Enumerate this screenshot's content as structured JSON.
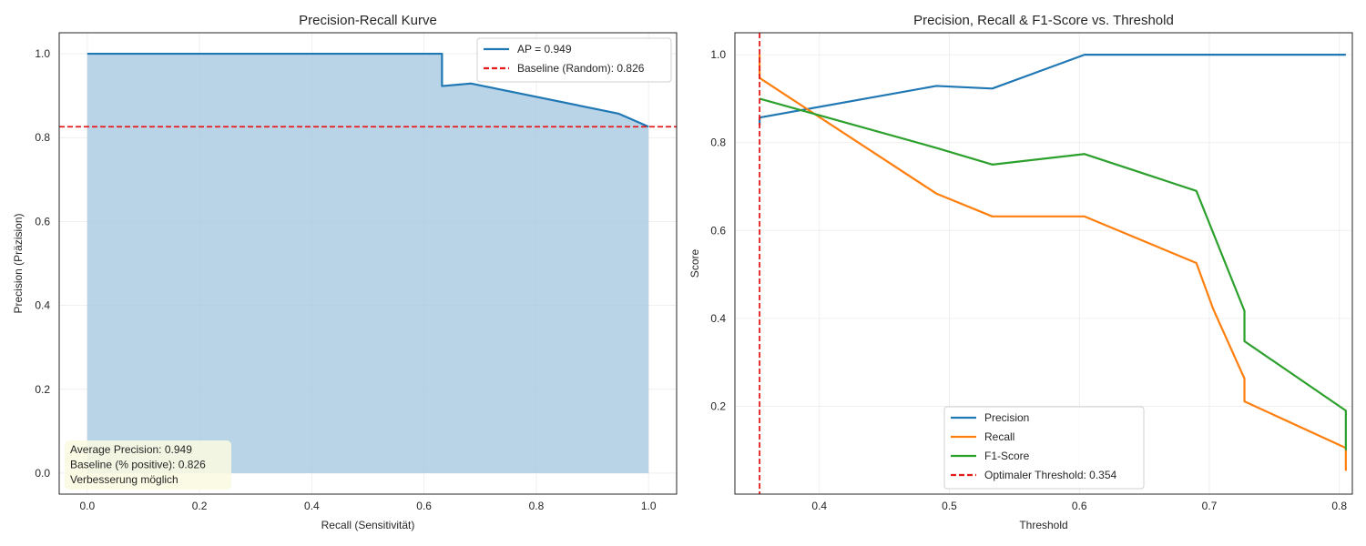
{
  "chart_data": [
    {
      "type": "area",
      "title": "Precision-Recall Kurve",
      "xlabel": "Recall (Sensitivität)",
      "ylabel": "Precision (Präzision)",
      "xlim": [
        -0.05,
        1.05
      ],
      "ylim": [
        -0.05,
        1.05
      ],
      "xticks": [
        "0.0",
        "0.2",
        "0.4",
        "0.6",
        "0.8",
        "1.0"
      ],
      "yticks": [
        "0.0",
        "0.2",
        "0.4",
        "0.6",
        "0.8",
        "1.0"
      ],
      "grid": true,
      "legend_position": "top-right",
      "series": [
        {
          "name": "AP = 0.949",
          "color": "#1f77b4",
          "fill_color": "#a6c8e0",
          "x": [
            0.0,
            0.632,
            0.632,
            0.684,
            0.947,
            1.0,
            1.0
          ],
          "y": [
            1.0,
            1.0,
            0.923,
            0.929,
            0.857,
            0.826,
            0.0
          ]
        }
      ],
      "reference_line": {
        "name": "Baseline (Random): 0.826",
        "orientation": "horizontal",
        "value": 0.826,
        "color": "#e41a1c",
        "style": "dashed"
      },
      "annotation": {
        "lines": [
          "Average Precision: 0.949",
          "Baseline (% positive): 0.826",
          "Verbesserung möglich"
        ],
        "background": "#fafae0"
      }
    },
    {
      "type": "line",
      "title": "Precision, Recall & F1-Score vs. Threshold",
      "xlabel": "Threshold",
      "ylabel": "Score",
      "xlim": [
        0.335,
        0.81
      ],
      "ylim": [
        0.0,
        1.05
      ],
      "xticks": [
        "0.4",
        "0.5",
        "0.6",
        "0.7",
        "0.8"
      ],
      "yticks": [
        "0.2",
        "0.4",
        "0.6",
        "0.8",
        "1.0"
      ],
      "xtick_values": [
        0.4,
        0.5,
        0.6,
        0.7,
        0.8
      ],
      "ytick_values": [
        0.2,
        0.4,
        0.6,
        0.8,
        1.0
      ],
      "grid": true,
      "legend_position": "lower-center",
      "series": [
        {
          "name": "Precision",
          "color": "#1f77b4",
          "x": [
            0.354,
            0.354,
            0.49,
            0.533,
            0.604,
            0.805
          ],
          "y": [
            0.84,
            0.857,
            0.929,
            0.923,
            1.0,
            1.0
          ]
        },
        {
          "name": "Recall",
          "color": "#ff7f0e",
          "x": [
            0.354,
            0.354,
            0.49,
            0.533,
            0.604,
            0.69,
            0.703,
            0.727,
            0.727,
            0.805,
            0.805
          ],
          "y": [
            1.0,
            0.947,
            0.684,
            0.632,
            0.632,
            0.526,
            0.421,
            0.263,
            0.211,
            0.105,
            0.053
          ]
        },
        {
          "name": "F1-Score",
          "color": "#2ca02c",
          "x": [
            0.354,
            0.49,
            0.533,
            0.604,
            0.69,
            0.727,
            0.727,
            0.805,
            0.805
          ],
          "y": [
            0.9,
            0.788,
            0.75,
            0.774,
            0.69,
            0.417,
            0.348,
            0.19,
            0.1
          ]
        }
      ],
      "reference_line": {
        "name": "Optimaler Threshold: 0.354",
        "orientation": "vertical",
        "value": 0.354,
        "color": "#e41a1c",
        "style": "dashed"
      }
    }
  ]
}
